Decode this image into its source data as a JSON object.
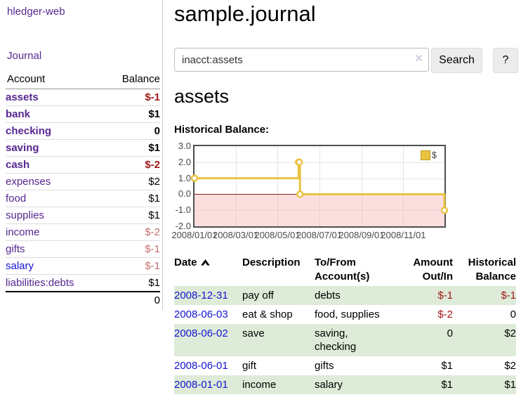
{
  "colors": {
    "purple": "#55278f",
    "blue": "#1414d2",
    "negative_strong": "#9d1616",
    "negative_soft": "#c66f6f",
    "row_green": "#deebd8",
    "chart_gold": "#e9c342",
    "chart_gold_border": "#bf9b1f",
    "chart_negative_region": "rgba(246,178,178,0.42)",
    "chart_zero_line": "#8b1a1a"
  },
  "sidebar": {
    "app_title": "hledger-web",
    "journal_label": "Journal",
    "accounts_table": {
      "headers": {
        "account": "Account",
        "balance": "Balance"
      },
      "rows": [
        {
          "name": "assets",
          "balance": "$-1",
          "indent": 1,
          "bold": true,
          "neg": "strong"
        },
        {
          "name": "bank",
          "balance": "$1",
          "indent": 2,
          "bold": true,
          "neg": "none"
        },
        {
          "name": "checking",
          "balance": "0",
          "indent": 3,
          "bold": true,
          "neg": "none"
        },
        {
          "name": "saving",
          "balance": "$1",
          "indent": 3,
          "bold": true,
          "neg": "none"
        },
        {
          "name": "cash",
          "balance": "$-2",
          "indent": 2,
          "bold": true,
          "neg": "strong"
        },
        {
          "name": "expenses",
          "balance": "$2",
          "indent": 1,
          "bold": false,
          "neg": "none"
        },
        {
          "name": "food",
          "balance": "$1",
          "indent": 2,
          "bold": false,
          "neg": "none"
        },
        {
          "name": "supplies",
          "balance": "$1",
          "indent": 2,
          "bold": false,
          "neg": "none"
        },
        {
          "name": "income",
          "balance": "$-2",
          "indent": 1,
          "bold": false,
          "neg": "soft"
        },
        {
          "name": "gifts",
          "balance": "$-1",
          "indent": 2,
          "bold": false,
          "neg": "soft"
        },
        {
          "name": "salary",
          "balance": "$-1",
          "indent": 2,
          "bold": false,
          "neg": "soft",
          "link_style": "unvisited"
        },
        {
          "name": "liabilities:debts",
          "balance": "$1",
          "indent": 1,
          "bold": false,
          "neg": "none"
        }
      ],
      "total": "0"
    }
  },
  "header": {
    "title": "sample.journal"
  },
  "search": {
    "value": "inacct:assets",
    "clear_icon": "×",
    "search_button": "Search",
    "help_button": "?"
  },
  "account_page": {
    "heading": "assets",
    "chart_label": "Historical Balance:"
  },
  "chart_data": {
    "type": "line",
    "style": "step",
    "title": "Historical Balance:",
    "series": [
      {
        "name": "$",
        "points": [
          [
            "2008-01-01",
            1
          ],
          [
            "2008-06-01",
            2
          ],
          [
            "2008-06-02",
            2
          ],
          [
            "2008-06-03",
            0
          ],
          [
            "2008-12-31",
            -1
          ]
        ]
      }
    ],
    "xlim": [
      "2008-01-01",
      "2008-12-31"
    ],
    "ylim": [
      -2,
      3
    ],
    "x_ticks": [
      "2008/01/01",
      "2008/03/01",
      "2008/05/01",
      "2008/07/01",
      "2008/09/01",
      "2008/11/01"
    ],
    "y_ticks": [
      "3.0",
      "2.0",
      "1.0",
      "0.0",
      "-1.0",
      "-2.0"
    ],
    "grid": true,
    "legend_position": "top-right",
    "legend_label": "$"
  },
  "register_table": {
    "headers": {
      "date": "Date",
      "description": "Description",
      "accounts": "To/From Account(s)",
      "amount": "Amount Out/In",
      "balance": "Historical Balance"
    },
    "rows": [
      {
        "date": "2008-12-31",
        "description": "pay off",
        "accounts": "debts",
        "amount": "$-1",
        "balance": "$-1",
        "shaded": true
      },
      {
        "date": "2008-06-03",
        "description": "eat & shop",
        "accounts": "food, supplies",
        "amount": "$-2",
        "balance": "0",
        "shaded": false
      },
      {
        "date": "2008-06-02",
        "description": "save",
        "accounts": "saving, checking",
        "amount": "0",
        "balance": "$2",
        "shaded": true
      },
      {
        "date": "2008-06-01",
        "description": "gift",
        "accounts": "gifts",
        "amount": "$1",
        "balance": "$2",
        "shaded": false
      },
      {
        "date": "2008-01-01",
        "description": "income",
        "accounts": "salary",
        "amount": "$1",
        "balance": "$1",
        "shaded": true
      }
    ]
  }
}
